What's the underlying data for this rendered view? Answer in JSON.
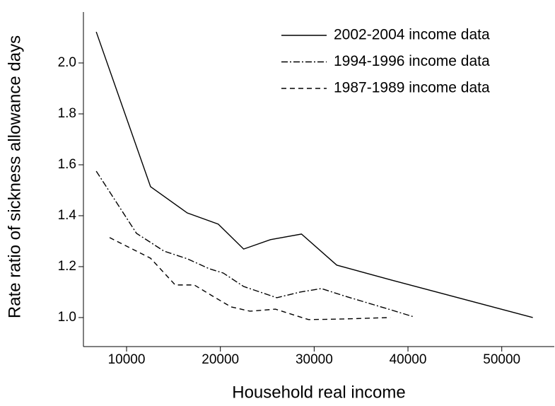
{
  "chart_data": {
    "type": "line",
    "x_label": "Household real income",
    "y_label": "Rate ratio of sickness allowance days",
    "xlim": [
      5400,
      55600
    ],
    "ylim": [
      0.886,
      2.2
    ],
    "xticks": [
      10000,
      20000,
      30000,
      40000,
      50000
    ],
    "yticks": [
      {
        "value": 1,
        "label": "1.0"
      },
      1.2,
      1.4,
      1.6,
      1.8,
      {
        "value": 2,
        "label": "2.0"
      }
    ],
    "legend": "upper right",
    "series": [
      {
        "name": "2002-2004 income data",
        "color": "#000000",
        "dash": "solid",
        "x": [
          6767,
          12556,
          16466,
          19774,
          22481,
          25338,
          28647,
          32406,
          38271,
          53308
        ],
        "values": [
          2.122,
          1.514,
          1.411,
          1.367,
          1.269,
          1.306,
          1.328,
          1.206,
          1.147,
          1.0
        ]
      },
      {
        "name": "1994-1996 income data",
        "color": "#000000",
        "dash": "dashdot",
        "x": [
          6767,
          11053,
          13985,
          16466,
          18797,
          20301,
          22481,
          26015,
          28496,
          30752,
          33383,
          38120,
          40602
        ],
        "values": [
          1.575,
          1.331,
          1.261,
          1.231,
          1.192,
          1.175,
          1.122,
          1.078,
          1.1,
          1.114,
          1.083,
          1.031,
          1.003
        ]
      },
      {
        "name": "1987-1989 income data",
        "color": "#000000",
        "dash": "dashed",
        "x": [
          8195,
          12556,
          15188,
          17218,
          19098,
          21128,
          23158,
          25865,
          29398,
          32632,
          38120
        ],
        "values": [
          1.314,
          1.233,
          1.128,
          1.128,
          1.086,
          1.042,
          1.025,
          1.033,
          0.992,
          0.994,
          1.0
        ]
      }
    ]
  }
}
